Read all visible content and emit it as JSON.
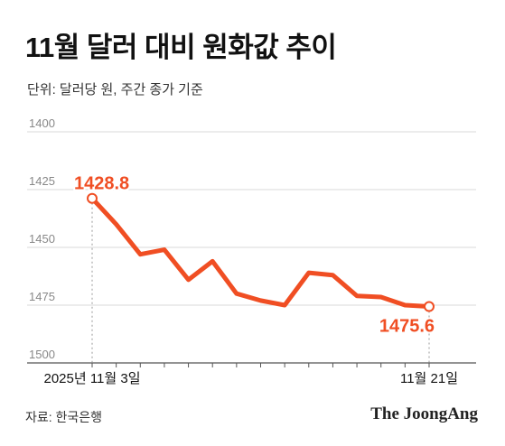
{
  "title": "11월 달러 대비 원화값 추이",
  "subtitle": "단위: 달러당 원, 주간 종가 기준",
  "source": "자료: 한국은행",
  "logo": "The JoongAng",
  "colors": {
    "series": "#f04e23",
    "grid": "#d9d9d9",
    "axis": "#555555"
  },
  "chart_data": {
    "type": "line",
    "title": "11월 달러 대비 원화값 추이",
    "y_ticks": [
      1400,
      1425,
      1450,
      1475,
      1500
    ],
    "ylim": [
      1400,
      1500
    ],
    "y_inverted": true,
    "x_tick_labels": [
      {
        "index": 0,
        "label": "2025년 11월 3일"
      },
      {
        "index": 14,
        "label": "11월 21일"
      }
    ],
    "series": [
      {
        "values": [
          1428.8,
          1440,
          1453,
          1451,
          1464,
          1456,
          1470,
          1473,
          1475,
          1461,
          1462,
          1471,
          1471.5,
          1475,
          1475.6
        ]
      }
    ],
    "annotations": [
      {
        "index": 0,
        "label": "1428.8"
      },
      {
        "index": 14,
        "label": "1475.6"
      }
    ],
    "grid": true
  }
}
